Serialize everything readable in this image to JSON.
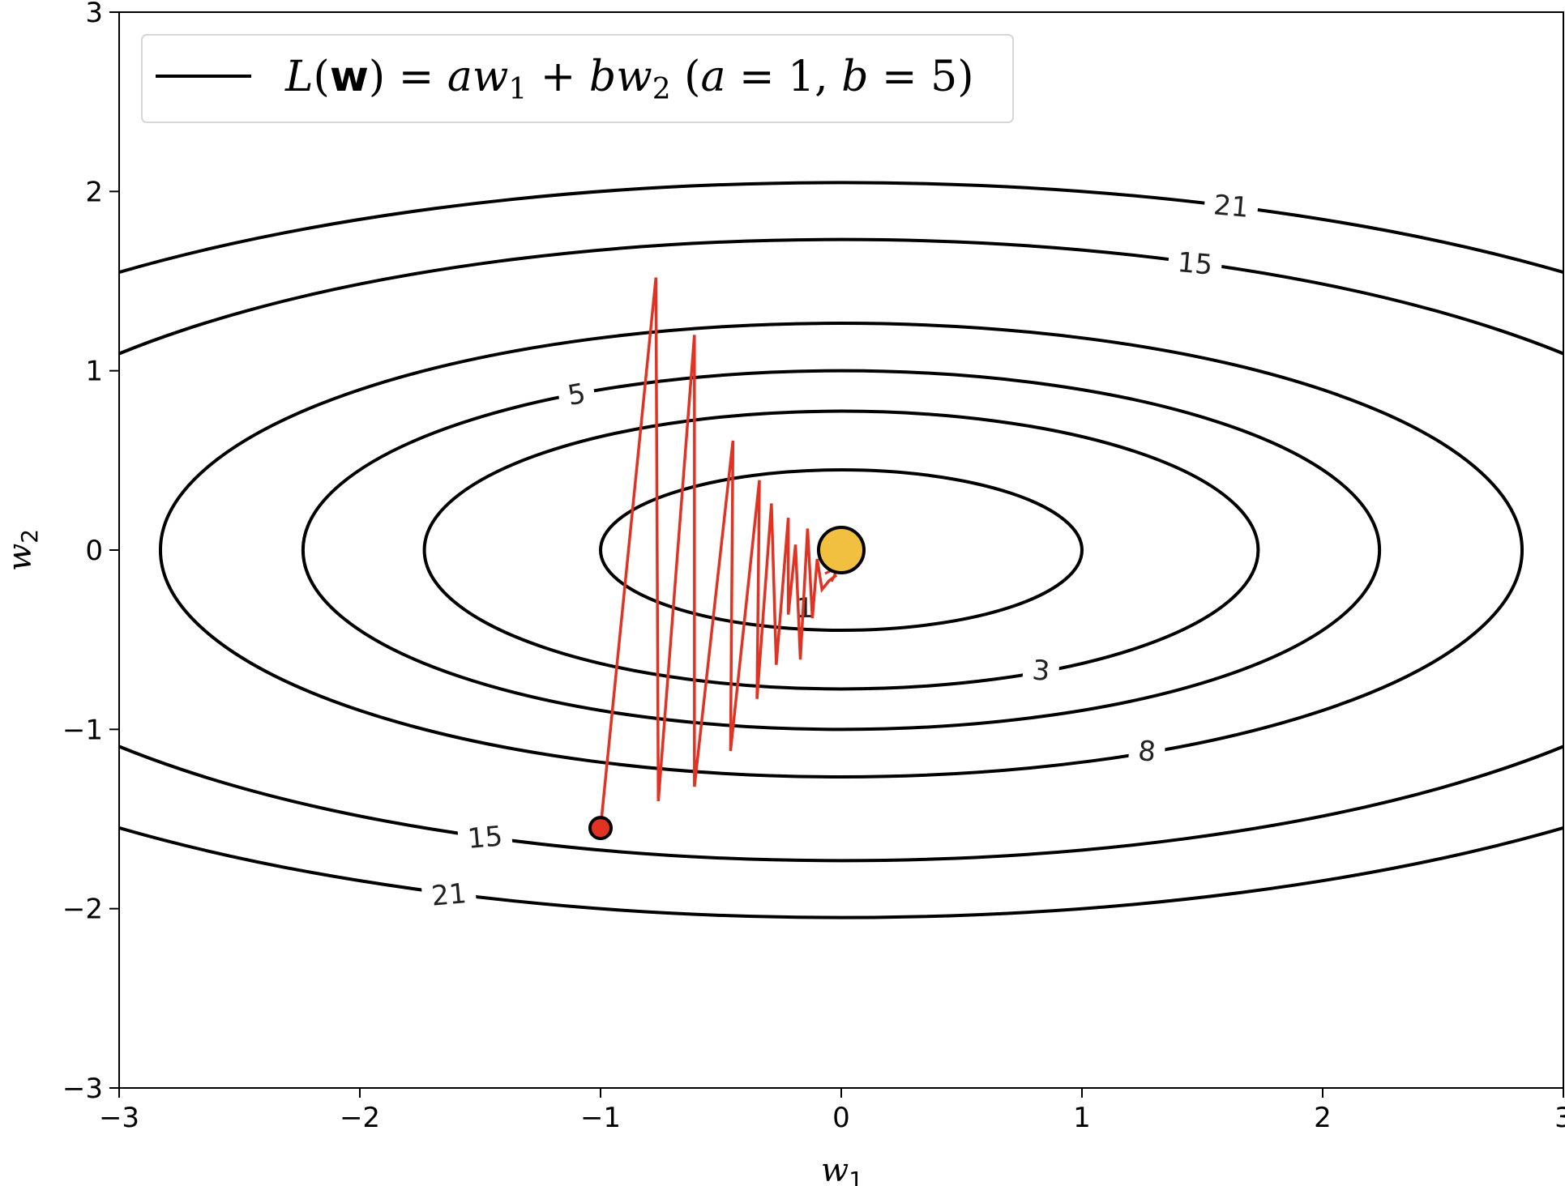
{
  "chart_data": {
    "type": "contour",
    "xlabel": {
      "base": "w",
      "sub": "1"
    },
    "ylabel": {
      "base": "w",
      "sub": "2"
    },
    "xlim": [
      -3,
      3
    ],
    "ylim": [
      -3,
      3
    ],
    "x_ticks": [
      -3,
      -2,
      -1,
      0,
      1,
      2,
      3
    ],
    "y_ticks": [
      -3,
      -2,
      -1,
      0,
      1,
      2,
      3
    ],
    "x_tick_labels": [
      "−3",
      "−2",
      "−1",
      "0",
      "1",
      "2",
      "3"
    ],
    "y_tick_labels": [
      "−3",
      "−2",
      "−1",
      "0",
      "1",
      "2",
      "3"
    ],
    "legend": {
      "position": "top-left",
      "entries": [
        {
          "line_color": "#000000",
          "label_parts": {
            "L": "L",
            "paren_open": "(",
            "w": "w",
            "paren_close": ")",
            "eq": " = ",
            "a": "a",
            "w1": "w",
            "w1_sub": "1",
            "plus": " + ",
            "b": "b",
            "w2": "w",
            "w2_sub": "2",
            "params_open": "  (",
            "a_name": "a",
            "a_eq": " = 1,  ",
            "b_name": "b",
            "b_eq": " = 5)"
          }
        }
      ]
    },
    "function": {
      "a": 1,
      "b": 5
    },
    "contour_levels": [
      1,
      3,
      5,
      8,
      15,
      21
    ],
    "contour_labels": [
      {
        "level": 1,
        "text": "1",
        "at": [
          -0.15,
          -0.32
        ],
        "rotation": 0
      },
      {
        "level": 3,
        "text": "3",
        "at": [
          0.83,
          -0.67
        ],
        "rotation": -5
      },
      {
        "level": 5,
        "text": "5",
        "at": [
          -1.1,
          0.87
        ],
        "rotation": 10
      },
      {
        "level": 8,
        "text": "8",
        "at": [
          1.27,
          -1.12
        ],
        "rotation": -5
      },
      {
        "level": 15,
        "text": "15",
        "at": [
          -1.48,
          -1.6
        ],
        "rotation": 5
      },
      {
        "level": 15,
        "text": "15",
        "at": [
          1.47,
          1.6
        ],
        "rotation": -5
      },
      {
        "level": 21,
        "text": "21",
        "at": [
          -1.63,
          -1.92
        ],
        "rotation": 5
      },
      {
        "level": 21,
        "text": "21",
        "at": [
          1.62,
          1.92
        ],
        "rotation": -5
      }
    ],
    "colors": {
      "contour": "#000000",
      "path": "#e03323",
      "start_marker": "#e03323",
      "end_marker": "#f2c041"
    },
    "path": [
      [
        -1.0,
        -1.55
      ],
      [
        -0.77,
        1.52
      ],
      [
        -0.76,
        -1.4
      ],
      [
        -0.61,
        1.2
      ],
      [
        -0.61,
        -1.32
      ],
      [
        -0.45,
        0.61
      ],
      [
        -0.46,
        -1.12
      ],
      [
        -0.34,
        0.39
      ],
      [
        -0.35,
        -0.83
      ],
      [
        -0.29,
        0.26
      ],
      [
        -0.27,
        -0.64
      ],
      [
        -0.22,
        0.18
      ],
      [
        -0.22,
        -0.36
      ],
      [
        -0.19,
        0.03
      ],
      [
        -0.17,
        -0.61
      ],
      [
        -0.14,
        0.12
      ],
      [
        -0.12,
        -0.38
      ],
      [
        -0.1,
        -0.05
      ],
      [
        -0.08,
        -0.22
      ],
      [
        -0.05,
        -0.17
      ],
      [
        -0.02,
        -0.14
      ]
    ],
    "start_point": [
      -1.0,
      -1.55
    ],
    "end_point": [
      0,
      0
    ]
  }
}
